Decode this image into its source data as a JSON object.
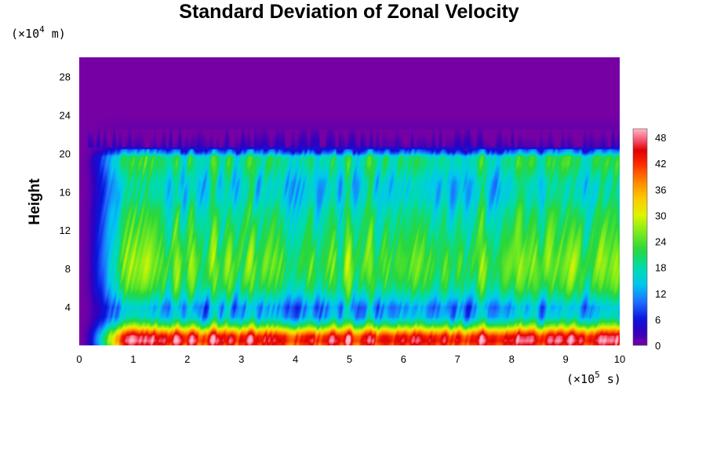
{
  "chart_data": {
    "type": "heatmap",
    "title": "Standard Deviation of Zonal Velocity",
    "xlabel": "",
    "x_unit": {
      "prefix": "(×10",
      "exp": "5",
      "suffix": " s)"
    },
    "ylabel": "Height",
    "y_unit": {
      "prefix": "(×10",
      "exp": "4",
      "suffix": " m)"
    },
    "xlim": [
      0,
      10
    ],
    "ylim": [
      0,
      30
    ],
    "x_ticks": [
      "0",
      "1",
      "2",
      "3",
      "4",
      "5",
      "6",
      "7",
      "8",
      "9",
      "10"
    ],
    "y_ticks": [
      "4",
      "8",
      "12",
      "16",
      "20",
      "24",
      "28"
    ],
    "colorbar": {
      "range": [
        0,
        50
      ],
      "ticks": [
        "0",
        "6",
        "12",
        "18",
        "24",
        "30",
        "36",
        "42",
        "48"
      ]
    },
    "profile_height": [
      0,
      0.5,
      1,
      1.5,
      2,
      2.5,
      3,
      4,
      5,
      6,
      7,
      8,
      9,
      10,
      11,
      12,
      13,
      14,
      15,
      16,
      17,
      18,
      19,
      19.7,
      20,
      20.5,
      21,
      22,
      24,
      30
    ],
    "profile_std": [
      42,
      46,
      44,
      36,
      26,
      19,
      14,
      12,
      17,
      21,
      23,
      24,
      24,
      23,
      22,
      21,
      20,
      19,
      17,
      16,
      16,
      18,
      20,
      19,
      12,
      6,
      3,
      1,
      0,
      0
    ],
    "spinup_end_time": 1.0
  }
}
